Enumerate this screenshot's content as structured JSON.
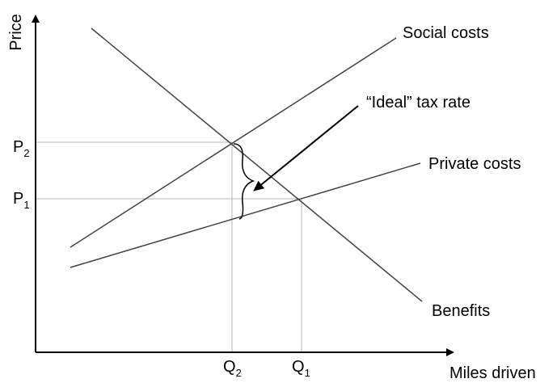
{
  "axes": {
    "y_label": "Price",
    "x_label": "Miles driven"
  },
  "price_ticks": [
    {
      "base": "P",
      "sub": "2"
    },
    {
      "base": "P",
      "sub": "1"
    }
  ],
  "quantity_ticks": [
    {
      "base": "Q",
      "sub": "2"
    },
    {
      "base": "Q",
      "sub": "1"
    }
  ],
  "curves": {
    "social_costs": "Social costs",
    "private_costs": "Private costs",
    "benefits": "Benefits"
  },
  "annotation": {
    "tax_label": "“Ideal” tax rate"
  },
  "colors": {
    "curve": "#444444",
    "guide": "#b5b5b5",
    "axis": "#000000"
  }
}
